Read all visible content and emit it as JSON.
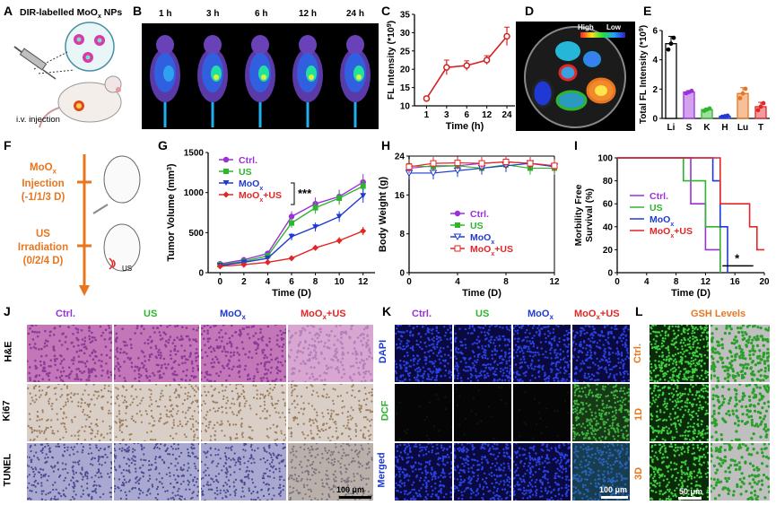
{
  "panel_labels": {
    "A": "A",
    "B": "B",
    "C": "C",
    "D": "D",
    "E": "E",
    "F": "F",
    "G": "G",
    "H": "H",
    "I": "I",
    "J": "J",
    "K": "K",
    "L": "L"
  },
  "panelA": {
    "title": "DIR-labelled MoO",
    "title_sub": "x",
    "title_tail": " NPs",
    "injection": "i.v. injection"
  },
  "panelB": {
    "times": [
      "1 h",
      "3 h",
      "6 h",
      "12 h",
      "24 h"
    ]
  },
  "panelD": {
    "high": "High",
    "low": "Low"
  },
  "panelF": {
    "inj_line1": "MoO",
    "inj_sub": "x",
    "inj_line2": "Injection",
    "inj_line3": "(-1/1/3 D)",
    "us_line1": "US",
    "us_line2": "Irradiation",
    "us_line3": "(0/2/4 D)",
    "us_icon": "US"
  },
  "panelJ": {
    "cols": [
      "Ctrl.",
      "US",
      "MoO",
      "MoO"
    ],
    "col_subs": [
      "",
      "",
      "x",
      "x"
    ],
    "col_tails": [
      "",
      "",
      "",
      "+US"
    ],
    "rows": [
      "H&E",
      "Ki67",
      "TUNEL"
    ],
    "scale": "100 μm"
  },
  "panelK": {
    "cols": [
      "Ctrl.",
      "US",
      "MoO",
      "MoO"
    ],
    "col_subs": [
      "",
      "",
      "x",
      "x"
    ],
    "col_tails": [
      "",
      "",
      "",
      "+US"
    ],
    "rows": [
      "DAPI",
      "DCF",
      "Merged"
    ],
    "scale": "100 μm"
  },
  "panelL": {
    "title": "GSH Levels",
    "rows": [
      "Ctrl.",
      "1D",
      "3D"
    ],
    "scale": "50 μm"
  },
  "colors": {
    "ctrl": "#9b30d9",
    "us": "#2db52d",
    "moo": "#1f3ad4",
    "moous": "#e32626",
    "orange": "#e8761e",
    "red": "#d62020"
  },
  "chart_data": [
    {
      "panel": "C",
      "type": "line",
      "xlabel": "Time (h)",
      "ylabel": "FL Intensity (*10^9)",
      "x": [
        1,
        3,
        6,
        12,
        24
      ],
      "xticks": [
        "1",
        "3",
        "6",
        "12",
        "24"
      ],
      "y": [
        12,
        20.5,
        21,
        22.5,
        29
      ],
      "err": [
        0.6,
        2,
        1.3,
        1.2,
        2.5
      ],
      "ylim": [
        10,
        35
      ],
      "yticks": [
        10,
        15,
        20,
        25,
        30,
        35
      ]
    },
    {
      "panel": "E",
      "type": "bar",
      "ylabel": "Total FL Intensity (*10^9)",
      "categories": [
        "Li",
        "S",
        "K",
        "H",
        "Lu",
        "T"
      ],
      "values": [
        5.1,
        1.8,
        0.6,
        0.15,
        1.7,
        0.8
      ],
      "err": [
        0.5,
        0.1,
        0.1,
        0.05,
        0.4,
        0.3
      ],
      "ylim": [
        0,
        6
      ],
      "yticks": [
        0,
        2,
        4,
        6
      ]
    },
    {
      "panel": "G",
      "type": "line",
      "xlabel": "Time (D)",
      "ylabel": "Tumor Volume (mm^3)",
      "x": [
        0,
        2,
        4,
        6,
        8,
        10,
        12
      ],
      "ylim": [
        0,
        1500
      ],
      "yticks": [
        0,
        500,
        1000,
        1500
      ],
      "annotation": "***",
      "series": [
        {
          "name": "Ctrl.",
          "values": [
            110,
            160,
            240,
            700,
            860,
            950,
            1130
          ]
        },
        {
          "name": "US",
          "values": [
            100,
            140,
            210,
            620,
            810,
            930,
            1080
          ]
        },
        {
          "name": "MoOx",
          "values": [
            90,
            130,
            180,
            450,
            570,
            700,
            960
          ]
        },
        {
          "name": "MoOx+US",
          "values": [
            80,
            100,
            130,
            180,
            310,
            400,
            520
          ]
        }
      ]
    },
    {
      "panel": "H",
      "type": "line",
      "xlabel": "Time (D)",
      "ylabel": "Body Weight (g)",
      "x": [
        0,
        2,
        4,
        6,
        8,
        10,
        12
      ],
      "ylim": [
        0,
        24
      ],
      "yticks": [
        0,
        8,
        16,
        24
      ],
      "series": [
        {
          "name": "Ctrl.",
          "values": [
            21.5,
            22,
            22,
            22.5,
            22.8,
            22.5,
            22
          ]
        },
        {
          "name": "US",
          "values": [
            22,
            21.8,
            22,
            21.5,
            22.2,
            21.5,
            21.5
          ]
        },
        {
          "name": "MoOx",
          "values": [
            20.5,
            20.5,
            21,
            21.5,
            22,
            22.5,
            21.8
          ]
        },
        {
          "name": "MoOx+US",
          "values": [
            21.8,
            22.5,
            22.6,
            22.5,
            22.8,
            22.5,
            22
          ]
        }
      ]
    },
    {
      "panel": "I",
      "type": "line",
      "xlabel": "Time (D)",
      "ylabel": "Morbility Free Survival (%)",
      "xlim": [
        0,
        20
      ],
      "ylim": [
        0,
        100
      ],
      "xticks": [
        0,
        4,
        8,
        12,
        16,
        20
      ],
      "yticks": [
        0,
        20,
        40,
        60,
        80,
        100
      ],
      "annotation": "*",
      "series": [
        {
          "name": "Ctrl.",
          "x": [
            0,
            10,
            10,
            12,
            12,
            14,
            14
          ],
          "y": [
            100,
            100,
            60,
            60,
            20,
            20,
            0
          ]
        },
        {
          "name": "US",
          "x": [
            0,
            9,
            9,
            12,
            12,
            14,
            14
          ],
          "y": [
            100,
            100,
            80,
            80,
            40,
            40,
            0
          ]
        },
        {
          "name": "MoOx",
          "x": [
            0,
            13,
            13,
            14,
            14,
            15,
            15
          ],
          "y": [
            100,
            100,
            80,
            80,
            40,
            40,
            0
          ]
        },
        {
          "name": "MoOx+US",
          "x": [
            0,
            14,
            14,
            18,
            18,
            19,
            19,
            20
          ],
          "y": [
            100,
            100,
            60,
            60,
            40,
            40,
            20,
            20
          ]
        }
      ]
    }
  ]
}
